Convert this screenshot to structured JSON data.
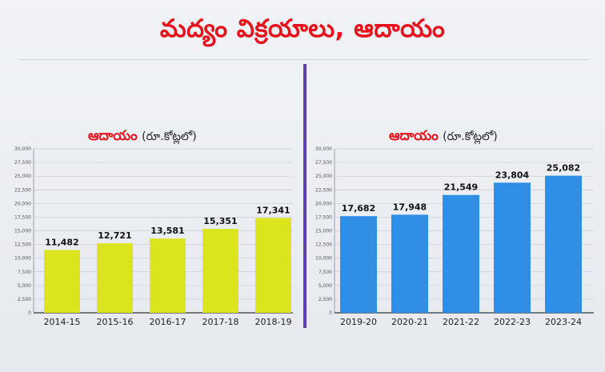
{
  "header": {
    "title": "మద్యం విక్రయాలు, ఆదాయం"
  },
  "chart_data": [
    {
      "type": "bar",
      "title_highlight": "ఆదాయం",
      "title_suffix": "(రూ.కోట్లలో)",
      "categories": [
        "2014-15",
        "2015-16",
        "2016-17",
        "2017-18",
        "2018-19"
      ],
      "values": [
        11482,
        12721,
        13581,
        15351,
        17341
      ],
      "value_labels": [
        "11,482",
        "12,721",
        "13,581",
        "15,351",
        "17,341"
      ],
      "ylim": [
        0,
        30000
      ],
      "yticks": [
        0,
        2500,
        5000,
        7500,
        10000,
        12500,
        15000,
        17500,
        20000,
        22500,
        25000,
        27500,
        30000
      ],
      "ytick_labels": [
        "0",
        "2,500",
        "5,000",
        "7,500",
        "10,000",
        "12,500",
        "15,000",
        "17,500",
        "20,000",
        "22,500",
        "25,000",
        "27,500",
        "30,000"
      ],
      "bar_color": "#dbe51e",
      "grid": true
    },
    {
      "type": "bar",
      "title_highlight": "ఆదాయం",
      "title_suffix": "(రూ.కోట్లలో)",
      "categories": [
        "2019-20",
        "2020-21",
        "2021-22",
        "2022-23",
        "2023-24"
      ],
      "values": [
        17682,
        17948,
        21549,
        23804,
        25082
      ],
      "value_labels": [
        "17,682",
        "17,948",
        "21,549",
        "23,804",
        "25,082"
      ],
      "ylim": [
        0,
        30000
      ],
      "yticks": [
        0,
        2500,
        5000,
        7500,
        10000,
        12500,
        15000,
        17500,
        20000,
        22500,
        25000,
        27500,
        30000
      ],
      "ytick_labels": [
        "0",
        "2,500",
        "5,000",
        "7,500",
        "10,000",
        "12,500",
        "15,000",
        "17,500",
        "20,000",
        "22,500",
        "25,000",
        "27,500",
        "30,000"
      ],
      "bar_color": "#2f8fe6",
      "grid": true
    }
  ]
}
